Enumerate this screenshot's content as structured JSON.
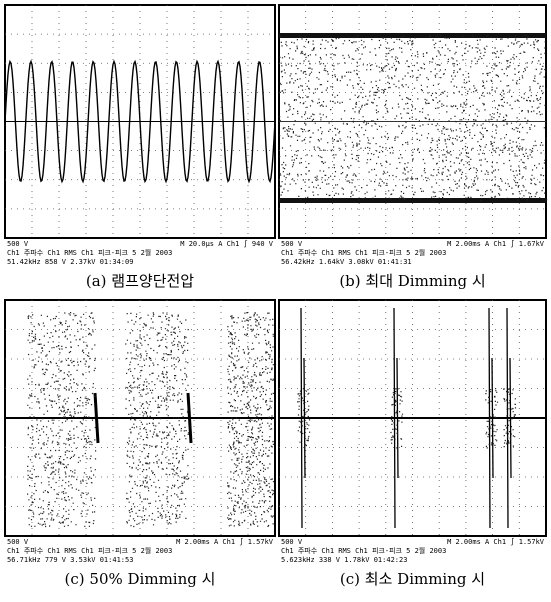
{
  "panels": [
    {
      "status": [
        "500 V",
        "M 20.0µs A Ch1 ∫ 940 V",
        "Ch1 주파수 Ch1 RMS Ch1 피크-피크 5 2월 2003",
        "51.42kHz 858 V 2.37kV 01:34:09"
      ],
      "caption": "(a) 램프양단전압"
    },
    {
      "status": [
        "500 V",
        "M 2.00ms A Ch1 ∫ 1.67kV",
        "Ch1 주파수 Ch1 RMS Ch1 피크-피크 5 2월 2003",
        "56.42kHz 1.64kV 3.08kV 01:41:31"
      ],
      "caption": "(b) 최대 Dimming 시"
    },
    {
      "status": [
        "500 V",
        "M 2.00ms A Ch1 ∫ 1.57kV",
        "Ch1 주파수 Ch1 RMS Ch1 피크-피크 5 2월 2003",
        "56.71kHz 779 V 3.53kV 01:41:53"
      ],
      "caption": "(c) 50% Dimming 시"
    },
    {
      "status": [
        "500 V",
        "M 2.00ms A Ch1 ∫ 1.57kV",
        "Ch1 주파수 Ch1 RMS Ch1 피크-피크 5 2월 2003",
        "5.623kHz 338 V 1.78kV 01:42:23"
      ],
      "caption": "(c) 최소 Dimming 시"
    }
  ]
}
